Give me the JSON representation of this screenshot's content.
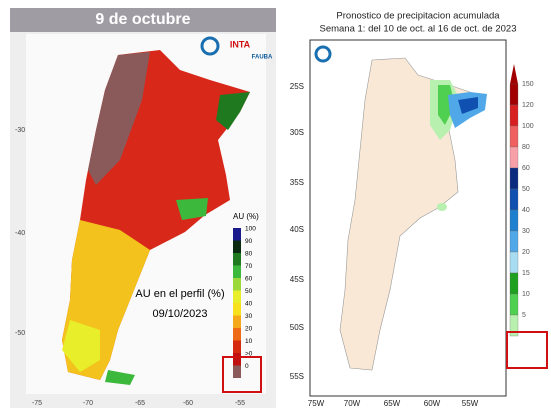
{
  "left_map": {
    "title": "9 de octubre",
    "logos": [
      "INTA",
      "FAUBA"
    ],
    "legend_title": "AU (%)",
    "legend": [
      {
        "label": "100",
        "color": "#1a1a8c"
      },
      {
        "label": "90",
        "color": "#0a2a10"
      },
      {
        "label": "80",
        "color": "#1f7a1f"
      },
      {
        "label": "70",
        "color": "#3cb83c"
      },
      {
        "label": "60",
        "color": "#9bd83a"
      },
      {
        "label": "50",
        "color": "#e8ee2a"
      },
      {
        "label": "40",
        "color": "#f7e01c"
      },
      {
        "label": "30",
        "color": "#f5a81a"
      },
      {
        "label": "20",
        "color": "#ef6a16"
      },
      {
        "label": "10",
        "color": "#d62a10"
      },
      {
        "label": ">0",
        "color": "#c01010"
      },
      {
        "label": "0",
        "color": "#8a5a5a"
      }
    ],
    "annotation": "AU en el perfil (%)",
    "date": "09/10/2023",
    "y_labels": [
      "-30",
      "-40",
      "-50"
    ],
    "x_labels": [
      "-75",
      "-70",
      "-65",
      "-60",
      "-55"
    ]
  },
  "right_map": {
    "title": "Pronostico de precipitacion acumulada",
    "subtitle": "Semana 1: del 10 de oct. al 16 de oct. de 2023",
    "legend": [
      {
        "label": "150",
        "color": "#a00000"
      },
      {
        "label": "120",
        "color": "#d82020"
      },
      {
        "label": "100",
        "color": "#f06060"
      },
      {
        "label": "80",
        "color": "#f8a0a8"
      },
      {
        "label": "60",
        "color": "#0a2a80"
      },
      {
        "label": "50",
        "color": "#1050b0"
      },
      {
        "label": "40",
        "color": "#2080d0"
      },
      {
        "label": "30",
        "color": "#50a8e8"
      },
      {
        "label": "20",
        "color": "#a8dcf0"
      },
      {
        "label": "15",
        "color": "#20a020"
      },
      {
        "label": "10",
        "color": "#50d050"
      },
      {
        "label": "5",
        "color": "#b8f0b0"
      }
    ],
    "y_labels": [
      "25S",
      "30S",
      "35S",
      "40S",
      "45S",
      "50S",
      "55S"
    ],
    "x_labels": [
      "75W",
      "70W",
      "65W",
      "60W",
      "55W"
    ]
  }
}
